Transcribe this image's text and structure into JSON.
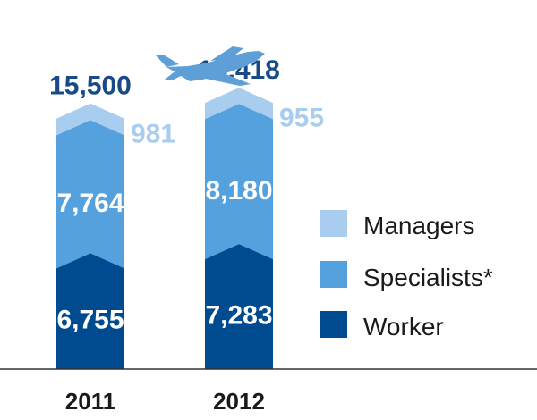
{
  "chart_data": {
    "type": "bar",
    "stacked": true,
    "categories": [
      "2011",
      "2012"
    ],
    "series": [
      {
        "name": "Worker",
        "values": [
          6755,
          7283
        ],
        "labels": [
          "6,755",
          "7,283"
        ]
      },
      {
        "name": "Specialists*",
        "values": [
          7764,
          8180
        ],
        "labels": [
          "7,764",
          "8,180"
        ]
      },
      {
        "name": "Managers",
        "values": [
          981,
          955
        ],
        "labels": [
          "981",
          "955"
        ]
      }
    ],
    "totals": [
      15500,
      16418
    ],
    "total_labels": [
      "15,500",
      "16,418"
    ],
    "legend_position": "right",
    "grid": false
  },
  "colors": {
    "worker": "#004a8f",
    "specialists": "#55a1dd",
    "managers": "#a9cdef",
    "total_text": "#174a86",
    "airplane": "#5e9fd8",
    "axis": "#333333"
  },
  "icons": {
    "airplane": "airplane-icon"
  }
}
